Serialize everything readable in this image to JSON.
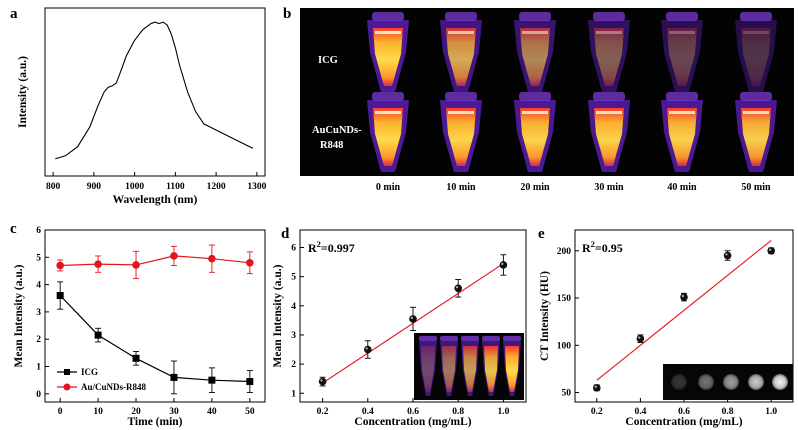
{
  "chart_data": [
    {
      "panel": "a",
      "type": "line",
      "xlabel": "Wavelength (nm)",
      "ylabel": "Intensity (a.u.)",
      "xlim": [
        780,
        1320
      ],
      "ylim": [
        0,
        1
      ],
      "xticks": [
        800,
        900,
        1000,
        1100,
        1200,
        1300
      ],
      "x": [
        805,
        830,
        860,
        890,
        910,
        925,
        935,
        945,
        955,
        965,
        980,
        1000,
        1020,
        1040,
        1050,
        1060,
        1070,
        1080,
        1090,
        1100,
        1110,
        1130,
        1150,
        1170,
        1200,
        1230,
        1260,
        1290
      ],
      "y": [
        0.06,
        0.08,
        0.14,
        0.27,
        0.41,
        0.5,
        0.53,
        0.54,
        0.56,
        0.63,
        0.74,
        0.84,
        0.91,
        0.95,
        0.96,
        0.95,
        0.96,
        0.94,
        0.88,
        0.79,
        0.68,
        0.5,
        0.37,
        0.29,
        0.25,
        0.21,
        0.17,
        0.13
      ]
    },
    {
      "panel": "b",
      "type": "image-grid",
      "row_labels": [
        "ICG",
        "AuCuNDs-",
        "R848"
      ],
      "time_labels": [
        "0 min",
        "10 min",
        "20 min",
        "30 min",
        "40 min",
        "50 min"
      ],
      "icg_brightness": [
        1.0,
        0.75,
        0.55,
        0.35,
        0.22,
        0.12
      ],
      "au_brightness": [
        1.0,
        0.98,
        0.97,
        0.97,
        0.96,
        0.95
      ]
    },
    {
      "panel": "c",
      "type": "line",
      "xlabel": "Time (min)",
      "ylabel": "Mean Intensity (a.u.)",
      "xlim": [
        -4,
        54
      ],
      "ylim": [
        -0.3,
        6
      ],
      "xticks": [
        0,
        10,
        20,
        30,
        40,
        50
      ],
      "yticks": [
        0,
        1,
        2,
        3,
        4,
        5,
        6
      ],
      "x": [
        0,
        10,
        20,
        30,
        40,
        50
      ],
      "series": [
        {
          "name": "ICG",
          "color": "#000000",
          "marker": "square",
          "values": [
            3.6,
            2.15,
            1.3,
            0.6,
            0.5,
            0.45
          ],
          "errors": [
            0.5,
            0.25,
            0.25,
            0.6,
            0.45,
            0.4
          ]
        },
        {
          "name": "Au/CuNDs-R848",
          "color": "#e3141b",
          "marker": "circle",
          "values": [
            4.7,
            4.75,
            4.72,
            5.05,
            4.95,
            4.8
          ],
          "errors": [
            0.2,
            0.3,
            0.5,
            0.35,
            0.5,
            0.4
          ]
        }
      ]
    },
    {
      "panel": "d",
      "type": "scatter",
      "xlabel": "Concentration (mg/mL)",
      "ylabel": "Mean Intensity (a.u.)",
      "xlim": [
        0.1,
        1.1
      ],
      "ylim": [
        0.7,
        6.6
      ],
      "xticks": [
        "0.2",
        "0.4",
        "0.6",
        "0.8",
        "1.0"
      ],
      "yticks": [
        1,
        2,
        3,
        4,
        5,
        6
      ],
      "x": [
        0.2,
        0.4,
        0.6,
        0.8,
        1.0
      ],
      "values": [
        1.4,
        2.5,
        3.55,
        4.6,
        5.4
      ],
      "errors": [
        0.15,
        0.3,
        0.4,
        0.3,
        0.35
      ],
      "fit": [
        [
          0.2,
          1.35
        ],
        [
          1.0,
          5.45
        ]
      ],
      "r2_prefix": "R",
      "r2_sup": "2",
      "r2_value": "=0.997"
    },
    {
      "panel": "e",
      "type": "scatter",
      "xlabel": "Concentration (mg/mL)",
      "ylabel": "CT Intensity (HU)",
      "xlim": [
        0.1,
        1.1
      ],
      "ylim": [
        40,
        222
      ],
      "xticks": [
        "0.2",
        "0.4",
        "0.6",
        "0.8",
        "1.0"
      ],
      "yticks": [
        50,
        100,
        150,
        200
      ],
      "x": [
        0.2,
        0.4,
        0.6,
        0.8,
        1.0
      ],
      "values": [
        55,
        107,
        151,
        195,
        200
      ],
      "errors": [
        3,
        4,
        4,
        5,
        3
      ],
      "fit": [
        [
          0.2,
          63
        ],
        [
          1.0,
          211
        ]
      ],
      "r2_prefix": "R",
      "r2_sup": "2",
      "r2_value": "=0.95",
      "ct_brightness": [
        0.2,
        0.45,
        0.62,
        0.8,
        0.95
      ]
    }
  ]
}
